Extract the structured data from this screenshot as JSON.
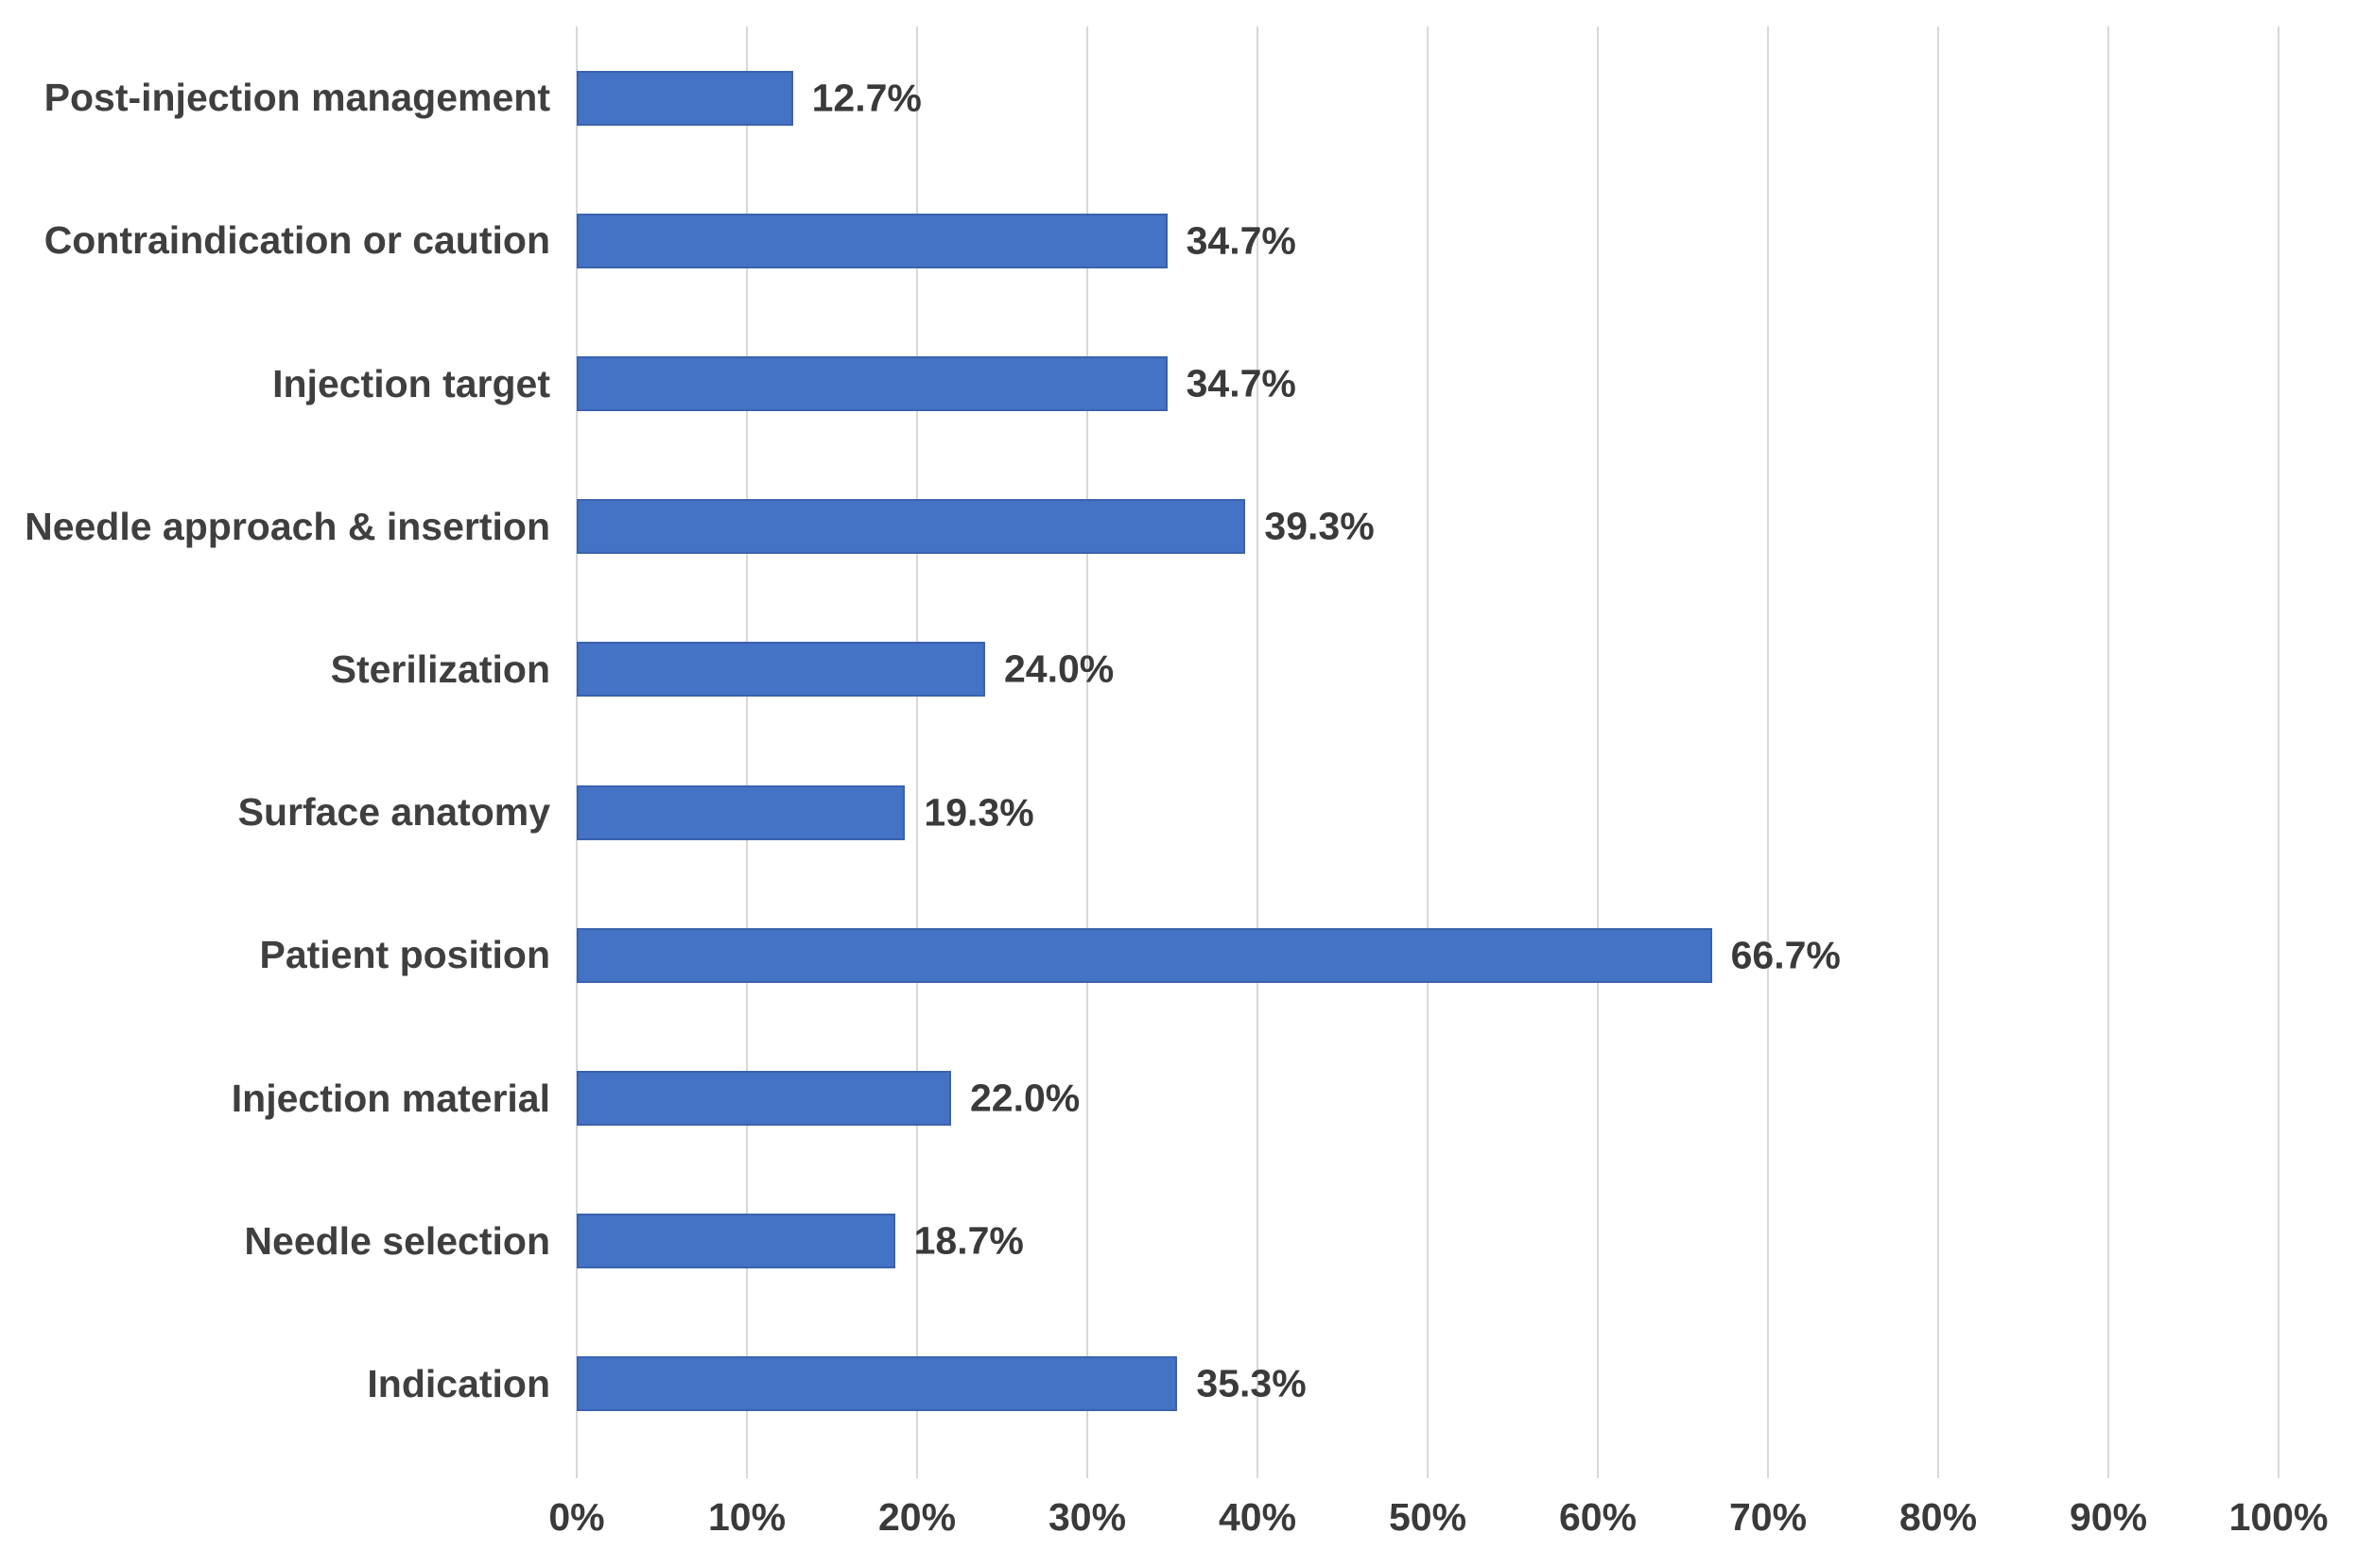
{
  "chart_data": {
    "type": "bar",
    "orientation": "horizontal",
    "title": "",
    "xlabel": "",
    "ylabel": "",
    "categories": [
      "Post-injection management",
      "Contraindication or caution",
      "Injection target",
      "Needle approach & insertion",
      "Sterilization",
      "Surface anatomy",
      "Patient position",
      "Injection material",
      "Needle selection",
      "Indication"
    ],
    "values": [
      12.7,
      34.7,
      34.7,
      39.3,
      24.0,
      19.3,
      66.7,
      22.0,
      18.7,
      35.3
    ],
    "value_labels": [
      "12.7%",
      "34.7%",
      "34.7%",
      "39.3%",
      "24.0%",
      "19.3%",
      "66.7%",
      "22.0%",
      "18.7%",
      "35.3%"
    ],
    "xlim": [
      0,
      100
    ],
    "x_tick_labels": [
      "0%",
      "10%",
      "20%",
      "30%",
      "40%",
      "50%",
      "60%",
      "70%",
      "80%",
      "90%",
      "100%"
    ],
    "grid": true,
    "legend": "none",
    "colors": {
      "bar_fill": "#4472C4",
      "bar_border": "#3A62AD",
      "gridline": "#D8D8D8",
      "label_text": "#3F3F3F"
    }
  }
}
